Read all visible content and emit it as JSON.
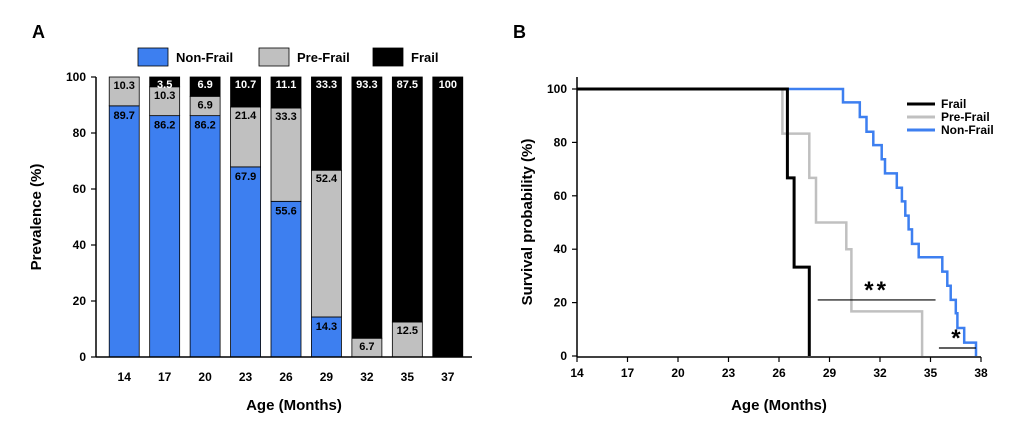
{
  "figure": {
    "panel_a_label": "A",
    "panel_b_label": "B"
  },
  "colors": {
    "non_frail": "#3d7ff0",
    "pre_frail": "#c0c0c0",
    "frail": "#000000"
  },
  "chart_data": [
    {
      "type": "bar",
      "stacked": true,
      "title": "",
      "xlabel": "Age (Months)",
      "ylabel": "Prevalence (%)",
      "ylim": [
        0,
        100
      ],
      "yticks": [
        "0",
        "20",
        "40",
        "60",
        "80",
        "100"
      ],
      "categories": [
        "14",
        "17",
        "20",
        "23",
        "26",
        "29",
        "32",
        "35",
        "37"
      ],
      "legend": [
        "Non-Frail",
        "Pre-Frail",
        "Frail"
      ],
      "legend_position": "top",
      "series": [
        {
          "name": "Non-Frail",
          "values": [
            89.7,
            86.2,
            86.2,
            67.9,
            55.6,
            14.3,
            0,
            0,
            0
          ],
          "labels": [
            "89.7",
            "86.2",
            "86.2",
            "67.9",
            "55.6",
            "14.3",
            "",
            "",
            ""
          ]
        },
        {
          "name": "Pre-Frail",
          "values": [
            10.3,
            10.3,
            6.9,
            21.4,
            33.3,
            52.4,
            6.7,
            12.5,
            0
          ],
          "labels": [
            "10.3",
            "10.3",
            "6.9",
            "21.4",
            "33.3",
            "52.4",
            "6.7",
            "12.5",
            ""
          ]
        },
        {
          "name": "Frail",
          "values": [
            0,
            3.5,
            6.9,
            10.7,
            11.1,
            33.3,
            93.3,
            87.5,
            100
          ],
          "labels": [
            "",
            "3.5",
            "6.9",
            "10.7",
            "11.1",
            "33.3",
            "93.3",
            "87.5",
            "100"
          ]
        }
      ]
    },
    {
      "type": "line",
      "step": true,
      "title": "",
      "xlabel": "Age (Months)",
      "ylabel": "Survival probability (%)",
      "xlim": [
        14,
        38
      ],
      "ylim": [
        0,
        100
      ],
      "xticks": [
        "14",
        "17",
        "20",
        "23",
        "26",
        "29",
        "32",
        "35",
        "38"
      ],
      "yticks": [
        "0",
        "20",
        "40",
        "60",
        "80",
        "100"
      ],
      "legend": [
        "Frail",
        "Pre-Frail",
        "Non-Frail"
      ],
      "legend_position": "top-right",
      "series": [
        {
          "name": "Frail",
          "points": [
            [
              14,
              100
            ],
            [
              26.5,
              100
            ],
            [
              26.5,
              66.7
            ],
            [
              26.9,
              66.7
            ],
            [
              26.9,
              33.3
            ],
            [
              27.8,
              33.3
            ],
            [
              27.8,
              0
            ]
          ]
        },
        {
          "name": "Pre-Frail",
          "points": [
            [
              14,
              100
            ],
            [
              26.2,
              100
            ],
            [
              26.2,
              83.3
            ],
            [
              27.8,
              83.3
            ],
            [
              27.8,
              66.7
            ],
            [
              28.2,
              66.7
            ],
            [
              28.2,
              50
            ],
            [
              30,
              50
            ],
            [
              30,
              40
            ],
            [
              30.3,
              40
            ],
            [
              30.3,
              16.7
            ],
            [
              34.5,
              16.7
            ],
            [
              34.5,
              0
            ]
          ]
        },
        {
          "name": "Non-Frail",
          "points": [
            [
              14,
              100
            ],
            [
              29.8,
              100
            ],
            [
              29.8,
              95
            ],
            [
              30.8,
              95
            ],
            [
              30.8,
              89.5
            ],
            [
              31.2,
              89.5
            ],
            [
              31.2,
              84
            ],
            [
              31.6,
              84
            ],
            [
              31.6,
              79
            ],
            [
              32.1,
              79
            ],
            [
              32.1,
              73.7
            ],
            [
              32.3,
              73.7
            ],
            [
              32.3,
              68.4
            ],
            [
              33,
              68.4
            ],
            [
              33,
              63
            ],
            [
              33.3,
              63
            ],
            [
              33.3,
              57.9
            ],
            [
              33.5,
              57.9
            ],
            [
              33.5,
              52.6
            ],
            [
              33.7,
              52.6
            ],
            [
              33.7,
              47.4
            ],
            [
              33.9,
              47.4
            ],
            [
              33.9,
              42
            ],
            [
              34.3,
              42
            ],
            [
              34.3,
              37
            ],
            [
              35.7,
              37
            ],
            [
              35.7,
              31.6
            ],
            [
              36,
              31.6
            ],
            [
              36,
              26.3
            ],
            [
              36.2,
              26.3
            ],
            [
              36.2,
              21
            ],
            [
              36.5,
              21
            ],
            [
              36.5,
              16
            ],
            [
              36.6,
              16
            ],
            [
              36.6,
              10.5
            ],
            [
              37,
              10.5
            ],
            [
              37,
              5
            ],
            [
              37.7,
              5
            ],
            [
              37.7,
              0
            ]
          ]
        }
      ],
      "annotations": [
        {
          "text": "**",
          "x_from": 28.3,
          "x_to": 35.3,
          "y": 21
        },
        {
          "text": "*",
          "x_from": 35.5,
          "x_to": 37.7,
          "y": 3
        }
      ]
    }
  ]
}
